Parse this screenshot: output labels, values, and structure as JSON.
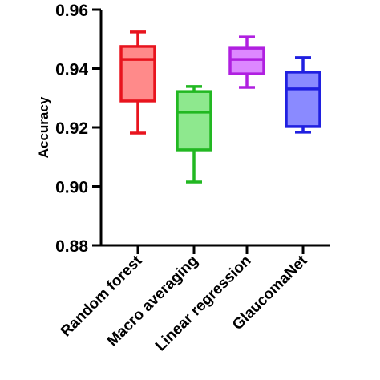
{
  "chart_data": {
    "type": "box",
    "y_label": "Accuracy",
    "categories": [
      "Random forest",
      "Macro averaging",
      "Linear regression",
      "GlaucomaNet"
    ],
    "boxes": [
      {
        "min": 0.9181,
        "q1": 0.929,
        "median": 0.9431,
        "q3": 0.9475,
        "max": 0.9524
      },
      {
        "min": 0.9015,
        "q1": 0.9124,
        "median": 0.9252,
        "q3": 0.9322,
        "max": 0.9339
      },
      {
        "min": 0.9336,
        "q1": 0.9382,
        "median": 0.9431,
        "q3": 0.9469,
        "max": 0.9507
      },
      {
        "min": 0.9184,
        "q1": 0.9203,
        "median": 0.9331,
        "q3": 0.9388,
        "max": 0.9437
      }
    ],
    "colors": [
      "#e8141e",
      "#22b822",
      "#b020e0",
      "#2020e0"
    ],
    "fill_colors": [
      "#ff8a8a",
      "#8ee88e",
      "#dd88ff",
      "#8a8aff"
    ],
    "ylim": [
      0.88,
      0.96
    ],
    "yticks": [
      0.88,
      {
        "value": 0.9,
        "label": "0.90"
      },
      0.92,
      0.94,
      0.96
    ]
  }
}
